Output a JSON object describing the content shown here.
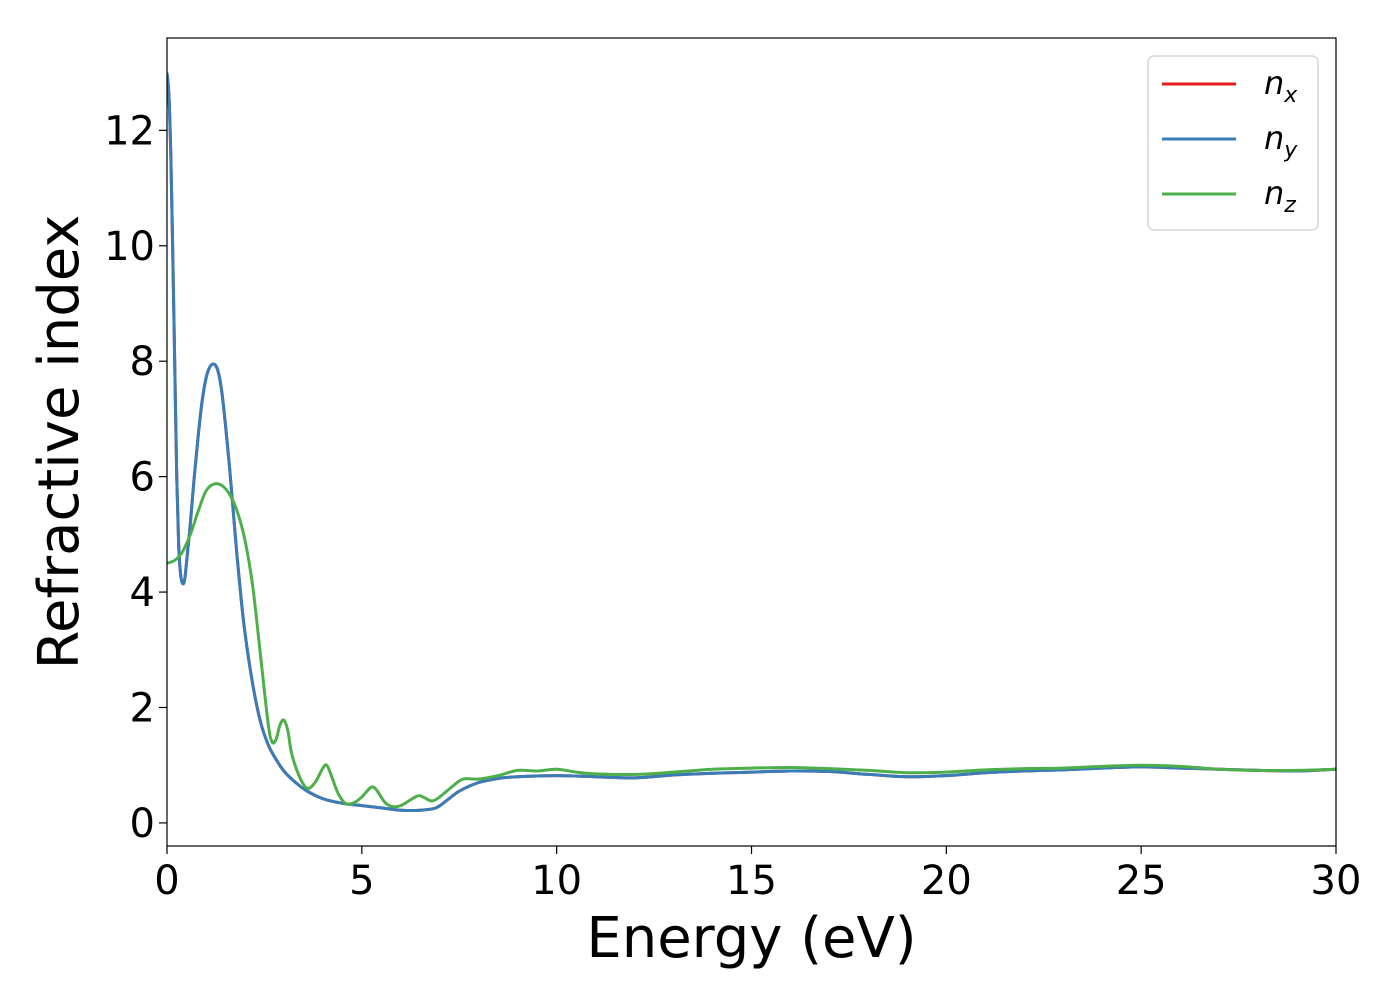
{
  "chart_data": {
    "type": "line",
    "title": "",
    "xlabel": "Energy (eV)",
    "ylabel": "Refractive index",
    "xlim": [
      0,
      30
    ],
    "ylim": [
      -0.4,
      13.6
    ],
    "xticks": [
      0,
      5,
      10,
      15,
      20,
      25,
      30
    ],
    "xtick_labels": [
      "0",
      "5",
      "10",
      "15",
      "20",
      "25",
      "30"
    ],
    "yticks": [
      0,
      2,
      4,
      6,
      8,
      10,
      12
    ],
    "ytick_labels": [
      "0",
      "2",
      "4",
      "6",
      "8",
      "10",
      "12"
    ],
    "grid": false,
    "legend_position": "top-right",
    "series": [
      {
        "name": "n_x",
        "legend_main": "n",
        "legend_sub": "x",
        "color": "#e41a1c",
        "x": [
          0,
          0.05,
          0.1,
          0.15,
          0.2,
          0.25,
          0.3,
          0.35,
          0.4,
          0.45,
          0.5,
          0.6,
          0.7,
          0.8,
          0.9,
          1.0,
          1.1,
          1.2,
          1.3,
          1.4,
          1.5,
          1.6,
          1.7,
          1.8,
          1.9,
          2.0,
          2.2,
          2.4,
          2.6,
          2.8,
          3.0,
          3.3,
          3.6,
          4.0,
          4.5,
          5.0,
          5.5,
          6.0,
          6.5,
          6.9,
          7.2,
          7.5,
          8.0,
          8.5,
          9.0,
          10.0,
          11.0,
          12.0,
          13.0,
          14.0,
          15.0,
          16.0,
          17.0,
          18.0,
          19.0,
          20.0,
          21.0,
          22.0,
          23.0,
          24.0,
          25.0,
          26.0,
          27.0,
          28.0,
          29.0,
          30.0
        ],
        "y": [
          13.0,
          12.6,
          11.5,
          9.8,
          7.9,
          6.0,
          4.8,
          4.3,
          4.15,
          4.2,
          4.5,
          5.2,
          6.0,
          6.7,
          7.3,
          7.7,
          7.9,
          7.95,
          7.85,
          7.5,
          6.9,
          6.2,
          5.4,
          4.6,
          3.9,
          3.3,
          2.4,
          1.75,
          1.35,
          1.1,
          0.9,
          0.7,
          0.55,
          0.42,
          0.34,
          0.3,
          0.26,
          0.22,
          0.22,
          0.26,
          0.4,
          0.55,
          0.7,
          0.77,
          0.8,
          0.82,
          0.8,
          0.78,
          0.83,
          0.86,
          0.88,
          0.9,
          0.89,
          0.84,
          0.8,
          0.82,
          0.87,
          0.9,
          0.92,
          0.95,
          0.97,
          0.95,
          0.93,
          0.91,
          0.9,
          0.93
        ]
      },
      {
        "name": "n_y",
        "legend_main": "n",
        "legend_sub": "y",
        "color": "#377eb8",
        "x": [
          0,
          0.05,
          0.1,
          0.15,
          0.2,
          0.25,
          0.3,
          0.35,
          0.4,
          0.45,
          0.5,
          0.6,
          0.7,
          0.8,
          0.9,
          1.0,
          1.1,
          1.2,
          1.3,
          1.4,
          1.5,
          1.6,
          1.7,
          1.8,
          1.9,
          2.0,
          2.2,
          2.4,
          2.6,
          2.8,
          3.0,
          3.3,
          3.6,
          4.0,
          4.5,
          5.0,
          5.5,
          6.0,
          6.5,
          6.9,
          7.2,
          7.5,
          8.0,
          8.5,
          9.0,
          10.0,
          11.0,
          12.0,
          13.0,
          14.0,
          15.0,
          16.0,
          17.0,
          18.0,
          19.0,
          20.0,
          21.0,
          22.0,
          23.0,
          24.0,
          25.0,
          26.0,
          27.0,
          28.0,
          29.0,
          30.0
        ],
        "y": [
          13.0,
          12.6,
          11.5,
          9.8,
          7.9,
          6.0,
          4.8,
          4.3,
          4.15,
          4.2,
          4.5,
          5.2,
          6.0,
          6.7,
          7.3,
          7.7,
          7.9,
          7.95,
          7.85,
          7.5,
          6.9,
          6.2,
          5.4,
          4.6,
          3.9,
          3.3,
          2.4,
          1.75,
          1.35,
          1.1,
          0.9,
          0.7,
          0.55,
          0.42,
          0.34,
          0.3,
          0.26,
          0.22,
          0.22,
          0.26,
          0.4,
          0.55,
          0.7,
          0.77,
          0.8,
          0.82,
          0.8,
          0.78,
          0.83,
          0.86,
          0.88,
          0.9,
          0.89,
          0.84,
          0.8,
          0.82,
          0.87,
          0.9,
          0.92,
          0.95,
          0.97,
          0.95,
          0.93,
          0.91,
          0.9,
          0.93
        ]
      },
      {
        "name": "n_z",
        "legend_main": "n",
        "legend_sub": "z",
        "color": "#4daf4a",
        "x": [
          0,
          0.2,
          0.4,
          0.6,
          0.8,
          1.0,
          1.2,
          1.4,
          1.6,
          1.8,
          2.0,
          2.2,
          2.4,
          2.6,
          2.7,
          2.8,
          2.9,
          3.0,
          3.1,
          3.2,
          3.4,
          3.6,
          3.8,
          4.0,
          4.1,
          4.2,
          4.4,
          4.6,
          4.8,
          5.0,
          5.2,
          5.3,
          5.4,
          5.6,
          5.8,
          6.0,
          6.2,
          6.4,
          6.5,
          6.6,
          6.8,
          7.0,
          7.3,
          7.6,
          8.0,
          8.5,
          9.0,
          9.5,
          10.0,
          10.5,
          11.0,
          12.0,
          13.0,
          14.0,
          15.0,
          16.0,
          17.0,
          18.0,
          19.0,
          20.0,
          21.0,
          22.0,
          23.0,
          24.0,
          25.0,
          26.0,
          27.0,
          28.0,
          29.0,
          30.0
        ],
        "y": [
          4.5,
          4.55,
          4.7,
          5.0,
          5.4,
          5.75,
          5.87,
          5.85,
          5.7,
          5.4,
          4.9,
          4.1,
          2.9,
          1.7,
          1.4,
          1.45,
          1.7,
          1.78,
          1.6,
          1.2,
          0.8,
          0.6,
          0.7,
          0.95,
          1.0,
          0.85,
          0.5,
          0.33,
          0.35,
          0.45,
          0.6,
          0.62,
          0.55,
          0.35,
          0.28,
          0.3,
          0.38,
          0.46,
          0.47,
          0.44,
          0.38,
          0.45,
          0.62,
          0.76,
          0.76,
          0.82,
          0.91,
          0.9,
          0.93,
          0.88,
          0.85,
          0.84,
          0.88,
          0.93,
          0.95,
          0.96,
          0.94,
          0.91,
          0.87,
          0.88,
          0.92,
          0.94,
          0.95,
          0.98,
          1.0,
          0.98,
          0.93,
          0.91,
          0.91,
          0.93
        ]
      }
    ]
  }
}
